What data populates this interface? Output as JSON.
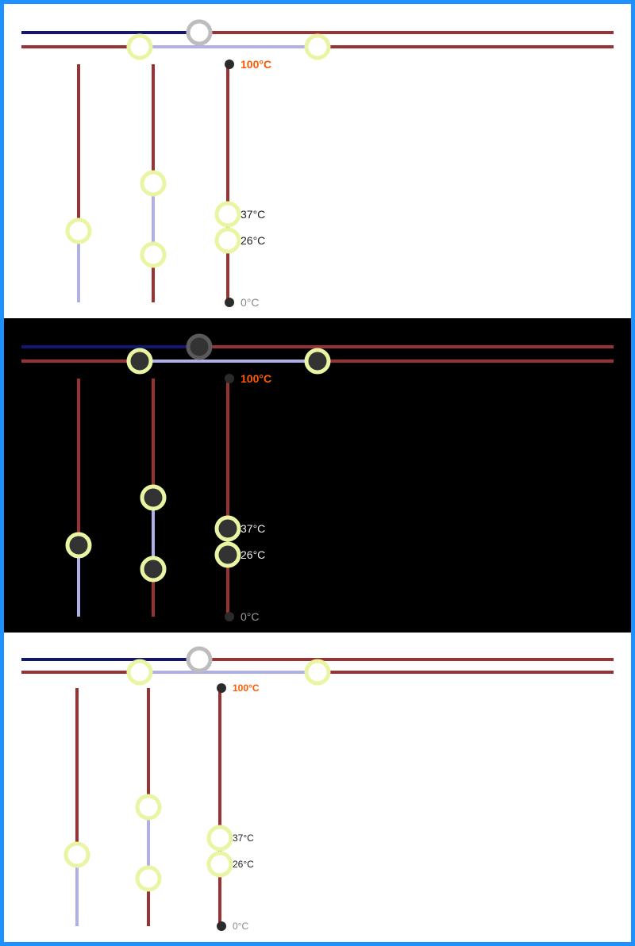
{
  "colors": {
    "border": "#1e90ff",
    "pipe_hot": "#993333",
    "pipe_navy": "#151572",
    "pipe_light": "#b0b0e8",
    "handle_ring": "#eaf5a3",
    "center_ring": "#bdbdbd",
    "max_label": "#ff5a00",
    "min_label": "#8a8a8a"
  },
  "panels": [
    {
      "theme": "light",
      "label_max": "100°C",
      "label_v1": "37°C",
      "label_v2": "26°C",
      "label_min": "0°C"
    },
    {
      "theme": "dark",
      "label_max": "100°C",
      "label_v1": "37°C",
      "label_v2": "26°C",
      "label_min": "0°C"
    },
    {
      "theme": "light-compact",
      "label_max": "100°C",
      "label_v1": "37°C",
      "label_v2": "26°C",
      "label_min": "0°C"
    }
  ],
  "sliders": [
    {
      "name": "single-range-slider",
      "values_percent": [
        30
      ]
    },
    {
      "name": "dual-range-slider",
      "values_percent": [
        30,
        50
      ]
    },
    {
      "name": "temperature-slider",
      "min": 0,
      "max": 100,
      "unit": "°C",
      "values": [
        26,
        37
      ]
    }
  ],
  "top_range": {
    "values_percent": [
      30,
      60
    ]
  }
}
